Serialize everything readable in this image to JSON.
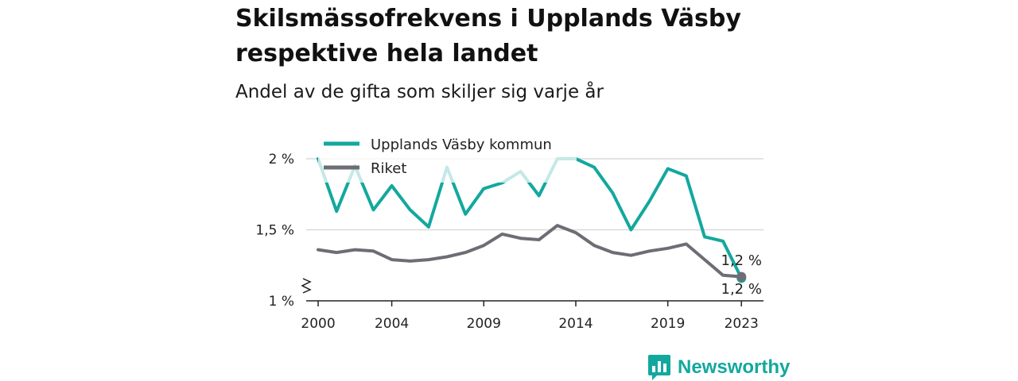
{
  "title": "Skilsmässofrekvens i Upplands Väsby respektive hela landet",
  "subtitle": "Andel av de gifta som skiljer sig varje år",
  "brand": {
    "name": "Newsworthy"
  },
  "colors": {
    "municipality": "#13a89e",
    "country": "#6d6d75",
    "grid": "#d9d9d9"
  },
  "chart_data": {
    "type": "line",
    "title": "Skilsmässofrekvens i Upplands Väsby respektive hela landet",
    "subtitle": "Andel av de gifta som skiljer sig varje år",
    "x_ticks": [
      "2000",
      "2004",
      "2009",
      "2014",
      "2019",
      "2023"
    ],
    "y_ticks": [
      "2 %",
      "1,5 %",
      "1 %"
    ],
    "ylim": [
      1,
      2
    ],
    "y_axis_break": true,
    "grid": true,
    "legend_position": "top-left",
    "x": [
      2000,
      2001,
      2002,
      2003,
      2004,
      2005,
      2006,
      2007,
      2008,
      2009,
      2010,
      2011,
      2012,
      2013,
      2014,
      2015,
      2016,
      2017,
      2018,
      2019,
      2020,
      2021,
      2022,
      2023
    ],
    "series": [
      {
        "name": "Upplands Väsby kommun",
        "values": [
          2.0,
          1.63,
          1.95,
          1.64,
          1.81,
          1.64,
          1.52,
          1.94,
          1.61,
          1.79,
          1.83,
          1.91,
          1.74,
          2.0,
          2.0,
          1.94,
          1.76,
          1.5,
          1.7,
          1.93,
          1.88,
          1.45,
          1.42,
          1.16
        ],
        "end_label": "1,2 %"
      },
      {
        "name": "Riket",
        "values": [
          1.36,
          1.34,
          1.36,
          1.35,
          1.29,
          1.28,
          1.29,
          1.31,
          1.34,
          1.39,
          1.47,
          1.44,
          1.43,
          1.53,
          1.48,
          1.39,
          1.34,
          1.32,
          1.35,
          1.37,
          1.4,
          1.29,
          1.18,
          1.17
        ],
        "end_label": "1,2 %"
      }
    ]
  }
}
